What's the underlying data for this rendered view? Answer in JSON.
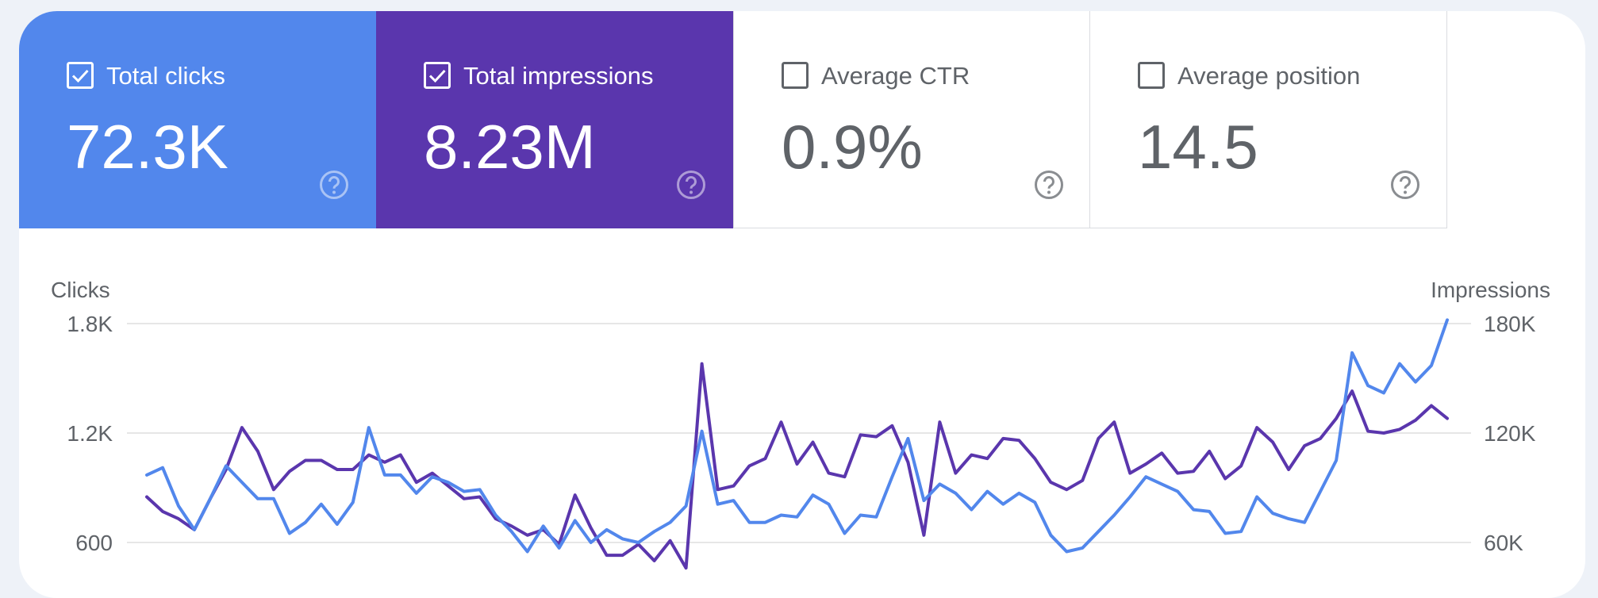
{
  "cards": [
    {
      "label": "Total clicks",
      "value": "72.3K",
      "checked": true,
      "bg": "#5287ec",
      "fg": "#ffffff",
      "help_color": "#a9c3f5"
    },
    {
      "label": "Total impressions",
      "value": "8.23M",
      "checked": true,
      "bg": "#5a36ad",
      "fg": "#ffffff",
      "help_color": "#ad9bd6"
    },
    {
      "label": "Average CTR",
      "value": "0.9%",
      "checked": false,
      "bg": "#ffffff",
      "fg": "#5f6368",
      "help_color": "#8a8d91"
    },
    {
      "label": "Average position",
      "value": "14.5",
      "checked": false,
      "bg": "#ffffff",
      "fg": "#5f6368",
      "help_color": "#8a8d91"
    }
  ],
  "help_icon": "help-circle-icon",
  "checkbox_icon": "checkbox-icon",
  "chart_data": {
    "type": "line",
    "title": "",
    "left_axis": {
      "label": "Clicks",
      "ticks": [
        "1.8K",
        "1.2K",
        "600"
      ],
      "tick_values": [
        1800,
        1200,
        600
      ]
    },
    "right_axis": {
      "label": "Impressions",
      "ticks": [
        "180K",
        "120K",
        "60K"
      ],
      "tick_values": [
        180000,
        120000,
        60000
      ]
    },
    "grid": true,
    "series": [
      {
        "name": "Clicks",
        "axis": "left",
        "color": "#5287ec",
        "values": [
          970,
          1010,
          800,
          670,
          840,
          1020,
          930,
          840,
          840,
          650,
          710,
          810,
          700,
          820,
          1230,
          970,
          970,
          870,
          960,
          930,
          880,
          890,
          750,
          660,
          550,
          690,
          570,
          720,
          600,
          670,
          620,
          600,
          660,
          710,
          800,
          1210,
          810,
          830,
          710,
          710,
          750,
          740,
          860,
          810,
          650,
          750,
          740,
          960,
          1170,
          830,
          920,
          870,
          780,
          880,
          810,
          870,
          820,
          640,
          550,
          570,
          660,
          750,
          850,
          960,
          920,
          880,
          780,
          770,
          650,
          660,
          850,
          760,
          730,
          710,
          880,
          1050,
          1640,
          1460,
          1420,
          1580,
          1480,
          1570,
          1820
        ]
      },
      {
        "name": "Impressions",
        "axis": "right",
        "color": "#5a36ad",
        "values": [
          85000,
          77000,
          73000,
          67000,
          84000,
          100000,
          123000,
          110000,
          89000,
          99000,
          105000,
          105000,
          100000,
          100000,
          108000,
          104000,
          108000,
          93000,
          98000,
          91000,
          84000,
          85000,
          73000,
          69000,
          64000,
          67000,
          59000,
          86000,
          68000,
          53000,
          53000,
          59000,
          50000,
          61000,
          46000,
          158000,
          89000,
          91000,
          102000,
          106000,
          126000,
          103000,
          115000,
          98000,
          96000,
          119000,
          118000,
          124000,
          104000,
          64000,
          126000,
          98000,
          108000,
          106000,
          117000,
          116000,
          106000,
          93000,
          89000,
          94000,
          117000,
          126000,
          98000,
          103000,
          109000,
          98000,
          99000,
          110000,
          95000,
          102000,
          123000,
          115000,
          100000,
          113000,
          117000,
          128000,
          143000,
          121000,
          120000,
          122000,
          127000,
          135000,
          128000
        ]
      }
    ],
    "ylim_left": [
      600,
      1800
    ],
    "ylim_right": [
      60000,
      180000
    ]
  }
}
